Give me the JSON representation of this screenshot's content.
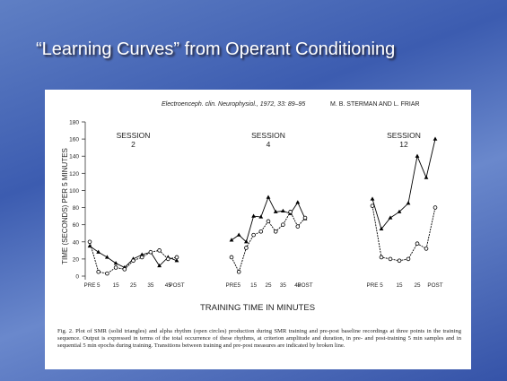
{
  "slide_title": "“Learning Curves” from Operant Conditioning",
  "figure": {
    "journal": "Electroenceph. clin. Neurophysiol., 1972, 33: 89–95",
    "authors": "M. B. STERMAN AND L. FRIAR",
    "ylabel": "TIME (SECONDS) PER 5 MINUTES",
    "xlabel": "TRAINING TIME IN MINUTES",
    "caption": "Fig. 2. Plot of SMR (solid triangles) and alpha rhythm (open circles) production during SMR training and pre-post baseline recordings at three points in the training sequence. Output is expressed in terms of the total occurrence of these rhythms, at criterion amplitude and duration, in pre- and post-training 5 min samples and in sequential 5 min epochs during training. Transitions between training and pre-post measures are indicated by broken line."
  },
  "chart_data": [
    {
      "type": "line",
      "title": "SESSION",
      "subtitle": "2",
      "categories": [
        "PRE",
        "5",
        null,
        "15",
        null,
        "25",
        null,
        "35",
        null,
        "45",
        "POST"
      ],
      "series": [
        {
          "color": "#000000",
          "marker": "triangle",
          "values": [
            35,
            28,
            22,
            15,
            10,
            20,
            25,
            28,
            12,
            22,
            18
          ]
        },
        {
          "color": "#000000",
          "marker": "circle",
          "values": [
            40,
            5,
            3,
            10,
            8,
            18,
            22,
            28,
            30,
            20,
            22
          ]
        }
      ],
      "ylim": [
        0,
        180
      ],
      "yticks": [
        0,
        20,
        40,
        60,
        80,
        100,
        120,
        140,
        160,
        180
      ]
    },
    {
      "type": "line",
      "title": "SESSION",
      "subtitle": "4",
      "categories": [
        "PRE",
        "5",
        null,
        "15",
        null,
        "25",
        null,
        "35",
        null,
        "45",
        "POST"
      ],
      "series": [
        {
          "color": "#000000",
          "marker": "triangle",
          "values": [
            42,
            48,
            40,
            70,
            69,
            92,
            75,
            76,
            73,
            86,
            67
          ]
        },
        {
          "color": "#000000",
          "marker": "circle",
          "values": [
            22,
            5,
            33,
            48,
            52,
            64,
            52,
            60,
            75,
            58,
            68
          ]
        }
      ],
      "ylim": [
        0,
        180
      ]
    },
    {
      "type": "line",
      "title": "SESSION",
      "subtitle": "12",
      "categories": [
        "PRE",
        "5",
        null,
        "15",
        null,
        "25",
        null,
        "POST"
      ],
      "series": [
        {
          "color": "#000000",
          "marker": "triangle",
          "values": [
            90,
            55,
            68,
            75,
            85,
            140,
            115,
            160
          ]
        },
        {
          "color": "#000000",
          "marker": "circle",
          "values": [
            82,
            22,
            20,
            18,
            20,
            38,
            32,
            80
          ]
        }
      ],
      "ylim": [
        0,
        180
      ]
    }
  ]
}
